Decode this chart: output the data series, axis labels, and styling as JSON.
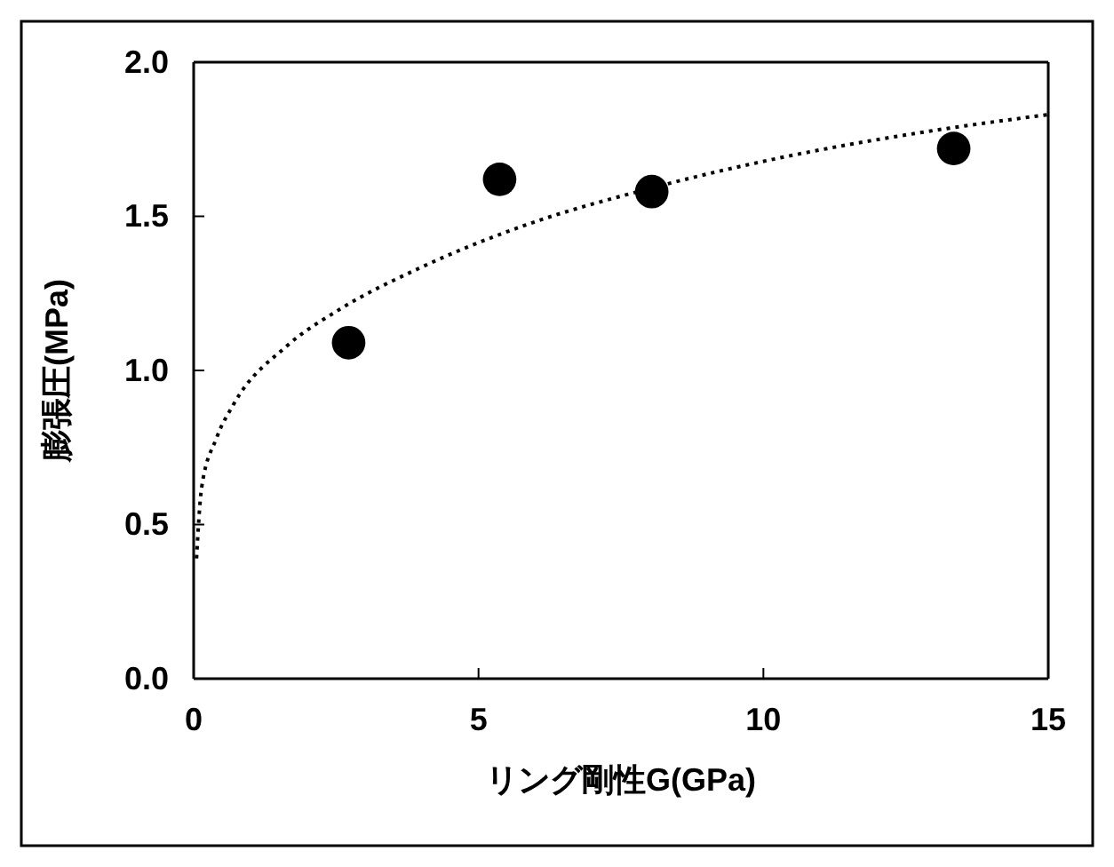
{
  "chart_data": {
    "type": "scatter",
    "xlabel": "リング剛性G(GPa)",
    "ylabel": "膨張圧(MPa)",
    "xlim": [
      0,
      15
    ],
    "xticks": [
      0,
      5,
      10,
      15
    ],
    "ylim": [
      0,
      2
    ],
    "yticks": [
      {
        "value": 0,
        "label": "0.0"
      },
      {
        "value": 0.5,
        "label": "0.5"
      },
      {
        "value": 1,
        "label": "1.0"
      },
      {
        "value": 1.5,
        "label": "1.5"
      },
      {
        "value": 2,
        "label": "2.0"
      }
    ],
    "grid": false,
    "series": [
      {
        "color": "#000000",
        "marker": "circle",
        "x": [
          2.72,
          5.37,
          8.04,
          13.34
        ],
        "values": [
          1.09,
          1.62,
          1.58,
          1.72
        ]
      },
      {
        "type": "line",
        "color": "#000000",
        "marker": "none",
        "line_style": "dotted",
        "x": [
          0.05,
          0.14,
          0.4,
          0.7,
          1.64,
          2.58,
          3.94,
          5.8,
          8.0,
          10.3,
          12.7,
          15.0
        ],
        "values": [
          0.39,
          0.62,
          0.78,
          0.89,
          1.08,
          1.2,
          1.33,
          1.47,
          1.59,
          1.69,
          1.77,
          1.83
        ]
      }
    ]
  }
}
